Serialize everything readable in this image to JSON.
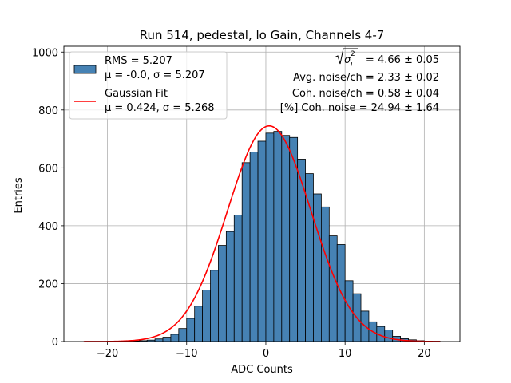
{
  "chart_data": {
    "type": "bar",
    "title": "Run 514, pedestal, lo Gain, Channels 4-7",
    "xlabel": "ADC Counts",
    "ylabel": "Entries",
    "xlim": [
      -25.5,
      24.5
    ],
    "ylim": [
      0,
      1020
    ],
    "xticks": [
      -20,
      -10,
      0,
      10,
      20
    ],
    "yticks": [
      0,
      200,
      400,
      600,
      800,
      1000
    ],
    "grid": true,
    "legend_position": "top-left",
    "bar_color": "#4682b4",
    "bin_edges_start": -23,
    "bin_width": 1,
    "histogram_counts": [
      0,
      0,
      0,
      0,
      0,
      1,
      2,
      3,
      5,
      9,
      15,
      25,
      45,
      80,
      122,
      178,
      246,
      332,
      380,
      437,
      618,
      655,
      692,
      720,
      726,
      712,
      705,
      630,
      580,
      510,
      465,
      365,
      335,
      210,
      165,
      105,
      68,
      52,
      40,
      18,
      10,
      6,
      3,
      1,
      1
    ],
    "fit": {
      "name": "Gaussian Fit",
      "mu": 0.424,
      "sigma": 5.268,
      "amplitude": 745,
      "x_range": [
        -23,
        22
      ],
      "color": "#ff0000"
    },
    "legend": [
      {
        "line1": "RMS = 5.207",
        "line2": "μ = -0.0, σ = 5.207",
        "kind": "patch"
      },
      {
        "line1": "Gaussian Fit",
        "line2": "μ = 0.424, σ = 5.268",
        "kind": "line"
      }
    ],
    "annotations": [
      {
        "value": " = 4.66 ± 0.05",
        "kind": "sqrt-sigma"
      },
      {
        "value": "Avg. noise/ch = 2.33 ± 0.02"
      },
      {
        "value": "Coh. noise/ch = 0.58 ± 0.04"
      },
      {
        "value": "[%] Coh. noise = 24.94 ± 1.64"
      }
    ]
  }
}
